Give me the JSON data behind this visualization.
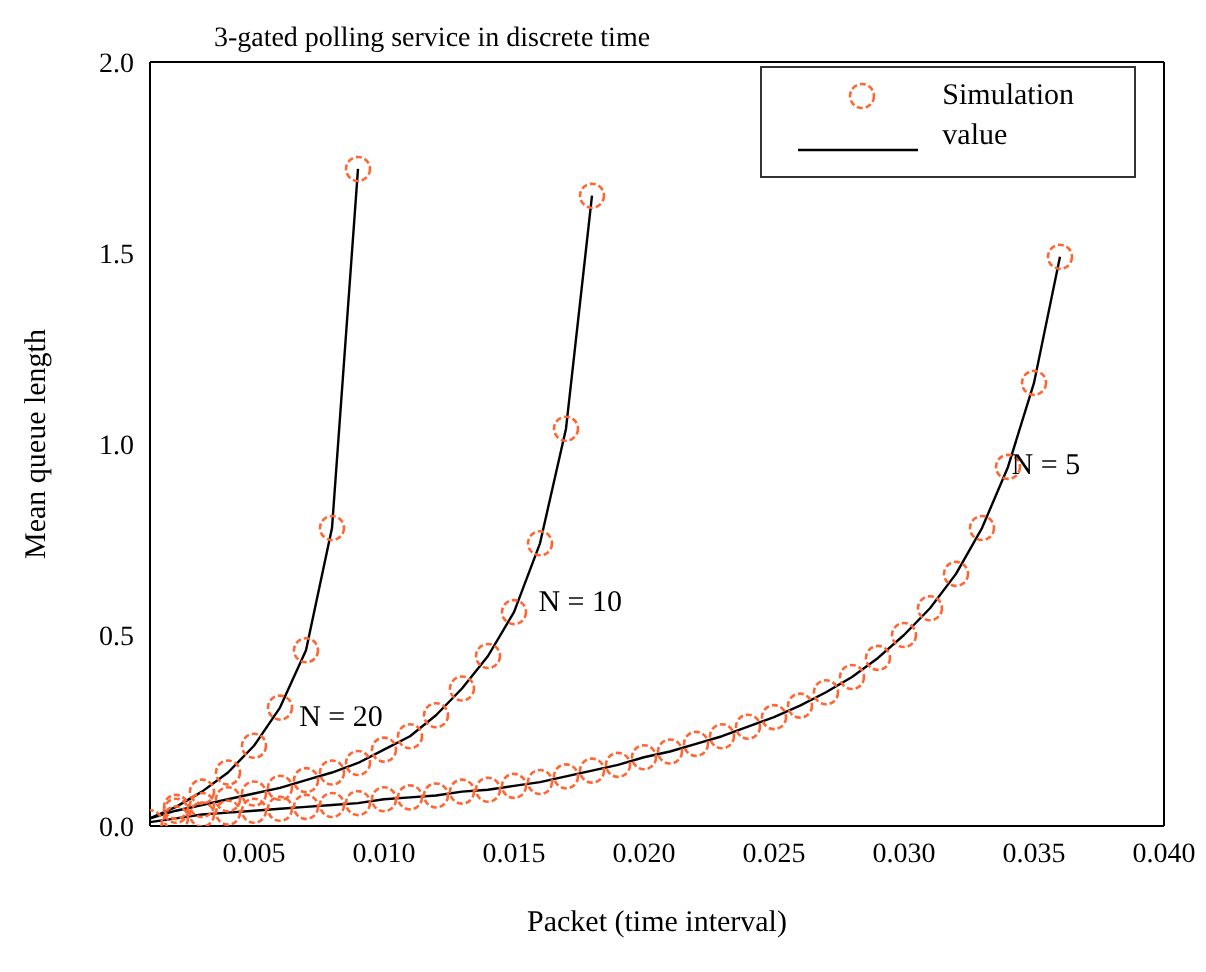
{
  "chart_data": {
    "type": "line",
    "title": "3-gated polling service in discrete time",
    "xlabel": "Packet (time interval)",
    "ylabel": "Mean queue length",
    "xlim": [
      0.001,
      0.04
    ],
    "xticks": [
      0.005,
      {
        "value": 0.01,
        "label": "0.010"
      },
      0.015,
      {
        "value": 0.02,
        "label": "0.020"
      },
      0.025,
      {
        "value": 0.03,
        "label": "0.030"
      },
      0.035,
      {
        "value": 0.04,
        "label": "0.040"
      }
    ],
    "ylim": [
      0,
      2
    ],
    "yticks": [
      {
        "value": 0,
        "label": "0.0"
      },
      0.5,
      {
        "value": 1,
        "label": "1.0"
      },
      1.5,
      {
        "value": 2,
        "label": "2.0"
      }
    ],
    "grid": false,
    "legend": "top right",
    "marker": "circle",
    "line_style": "solid",
    "annotations": [
      {
        "text": "N = 20",
        "x": 0.0062,
        "y": 0.29
      },
      {
        "text": "N = 10",
        "x": 0.0154,
        "y": 0.59
      },
      {
        "text": "N = 5",
        "x": 0.0336,
        "y": 0.95
      }
    ],
    "series": [
      {
        "type": "scatter",
        "name": "Simulation",
        "color": "#ff6633",
        "x": [
          0.002,
          0.003,
          0.004,
          0.005,
          0.006,
          0.007,
          0.008,
          0.009
        ],
        "values": [
          0.05,
          0.09,
          0.14,
          0.21,
          0.31,
          0.46,
          0.78,
          1.72
        ]
      },
      {
        "name": "value",
        "marker": "none",
        "color": "#000000",
        "x": [
          0.001,
          0.002,
          0.003,
          0.004,
          0.005,
          0.006,
          0.007,
          0.008,
          0.009
        ],
        "values": [
          0.02,
          0.05,
          0.09,
          0.14,
          0.21,
          0.31,
          0.46,
          0.78,
          1.72
        ]
      },
      {
        "type": "scatter",
        "color": "#ff6633",
        "x": [
          0.002,
          0.003,
          0.004,
          0.005,
          0.006,
          0.007,
          0.008,
          0.009,
          0.01,
          0.011,
          0.012,
          0.013,
          0.014,
          0.015,
          0.016,
          0.017,
          0.018
        ],
        "values": [
          0.04,
          0.055,
          0.07,
          0.085,
          0.1,
          0.12,
          0.14,
          0.165,
          0.2,
          0.235,
          0.29,
          0.36,
          0.445,
          0.56,
          0.74,
          1.04,
          1.65
        ]
      },
      {
        "marker": "none",
        "color": "#000000",
        "x": [
          0.001,
          0.002,
          0.003,
          0.004,
          0.005,
          0.006,
          0.007,
          0.008,
          0.009,
          0.01,
          0.011,
          0.012,
          0.013,
          0.014,
          0.015,
          0.016,
          0.017,
          0.018
        ],
        "values": [
          0.02,
          0.04,
          0.055,
          0.07,
          0.085,
          0.1,
          0.12,
          0.14,
          0.165,
          0.2,
          0.235,
          0.29,
          0.36,
          0.445,
          0.56,
          0.74,
          1.04,
          1.65
        ]
      },
      {
        "type": "scatter",
        "color": "#ff6633",
        "x": [
          0.001,
          0.002,
          0.003,
          0.004,
          0.005,
          0.006,
          0.007,
          0.008,
          0.009,
          0.01,
          0.011,
          0.012,
          0.013,
          0.014,
          0.015,
          0.016,
          0.017,
          0.018,
          0.019,
          0.02,
          0.021,
          0.022,
          0.023,
          0.024,
          0.025,
          0.026,
          0.027,
          0.028,
          0.029,
          0.03,
          0.031,
          0.032,
          0.033,
          0.034,
          0.035,
          0.036
        ],
        "values": [
          0.01,
          0.02,
          0.03,
          0.035,
          0.04,
          0.045,
          0.05,
          0.055,
          0.06,
          0.07,
          0.075,
          0.08,
          0.09,
          0.095,
          0.105,
          0.115,
          0.13,
          0.145,
          0.16,
          0.18,
          0.195,
          0.215,
          0.235,
          0.26,
          0.285,
          0.315,
          0.35,
          0.39,
          0.44,
          0.5,
          0.57,
          0.66,
          0.78,
          0.94,
          1.16,
          1.49
        ]
      },
      {
        "marker": "none",
        "color": "#000000",
        "x": [
          0.001,
          0.002,
          0.003,
          0.004,
          0.005,
          0.006,
          0.007,
          0.008,
          0.009,
          0.01,
          0.011,
          0.012,
          0.013,
          0.014,
          0.015,
          0.016,
          0.017,
          0.018,
          0.019,
          0.02,
          0.021,
          0.022,
          0.023,
          0.024,
          0.025,
          0.026,
          0.027,
          0.028,
          0.029,
          0.03,
          0.031,
          0.032,
          0.033,
          0.034,
          0.035,
          0.036
        ],
        "values": [
          0.01,
          0.02,
          0.03,
          0.035,
          0.04,
          0.045,
          0.05,
          0.055,
          0.06,
          0.07,
          0.075,
          0.08,
          0.09,
          0.095,
          0.105,
          0.115,
          0.13,
          0.145,
          0.16,
          0.18,
          0.195,
          0.215,
          0.235,
          0.26,
          0.285,
          0.315,
          0.35,
          0.39,
          0.44,
          0.5,
          0.57,
          0.66,
          0.78,
          0.94,
          1.16,
          1.49
        ]
      }
    ]
  }
}
